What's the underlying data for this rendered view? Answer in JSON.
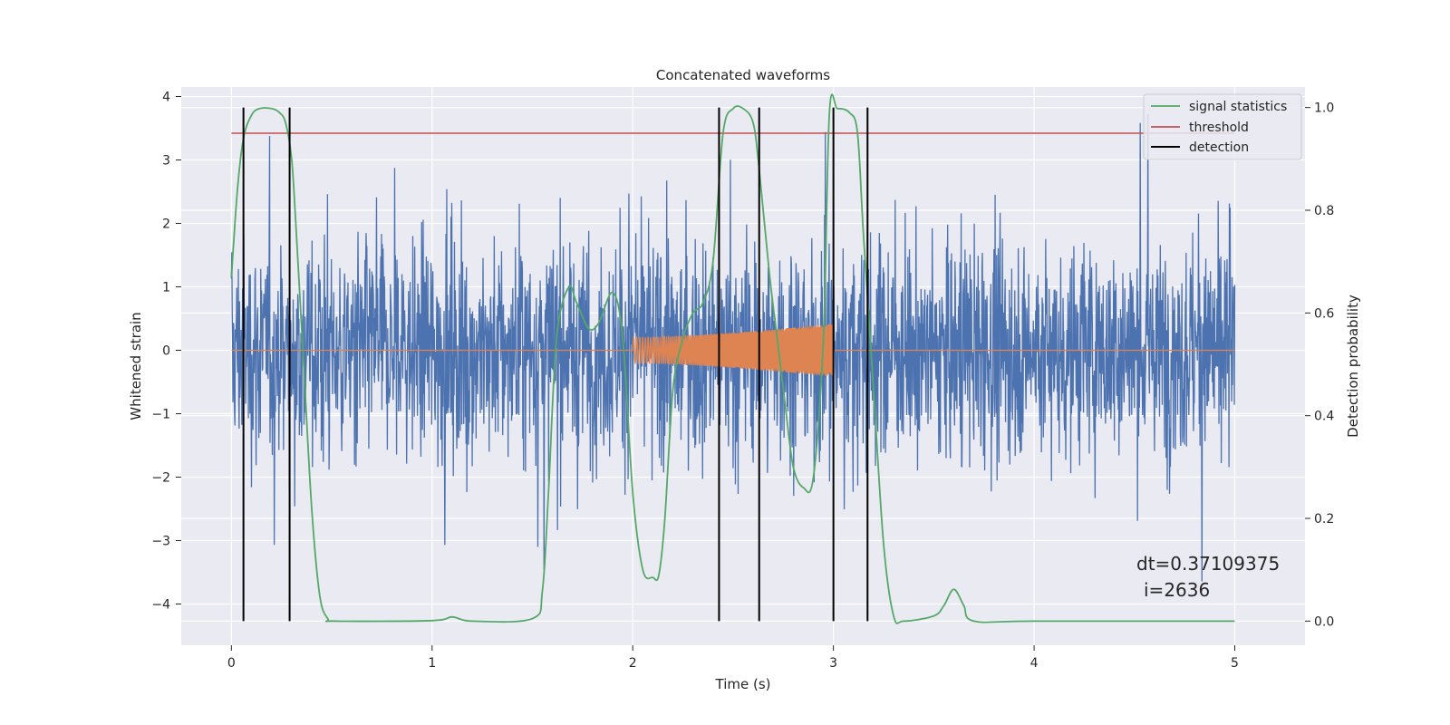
{
  "chart_data": {
    "type": "line",
    "title": "Concatenated waveforms",
    "xlabel": "Time (s)",
    "ylabel": "Whitened strain",
    "y2label": "Detection probability",
    "xlim": [
      -0.25,
      5.35
    ],
    "ylim": [
      -4.65,
      4.15
    ],
    "y2lim": [
      -0.047,
      1.04
    ],
    "xticks": [
      0,
      1,
      2,
      3,
      4,
      5
    ],
    "yticks": [
      -4,
      -3,
      -2,
      -1,
      0,
      1,
      2,
      3,
      4
    ],
    "y2ticks": [
      0.0,
      0.2,
      0.4,
      0.6,
      0.8,
      1.0
    ],
    "xtick_labels": [
      "0",
      "1",
      "2",
      "3",
      "4",
      "5"
    ],
    "ytick_labels": [
      "−4",
      "−3",
      "−2",
      "−1",
      "0",
      "1",
      "2",
      "3",
      "4"
    ],
    "y2tick_labels": [
      "0.0",
      "0.2",
      "0.4",
      "0.6",
      "0.8",
      "1.0"
    ],
    "grid": true,
    "legend_position": "top-right",
    "colors": {
      "noise": "#4c72b0",
      "injected": "#dd8452",
      "signal_statistics": "#55a868",
      "threshold": "#c44e52",
      "detection": "#000000",
      "background": "#eaeaf2",
      "grid": "#ffffff"
    },
    "series": [
      {
        "name": "signal statistics",
        "axis": "right",
        "x": [
          0.0,
          0.03,
          0.06,
          0.1,
          0.14,
          0.2,
          0.24,
          0.27,
          0.3,
          0.32,
          0.36,
          0.4,
          0.44,
          0.48,
          0.52,
          1.0,
          1.1,
          1.2,
          1.5,
          1.55,
          1.58,
          1.62,
          1.68,
          1.72,
          1.78,
          1.83,
          1.9,
          1.95,
          2.0,
          2.05,
          2.1,
          2.13,
          2.16,
          2.2,
          2.25,
          2.3,
          2.35,
          2.4,
          2.45,
          2.5,
          2.55,
          2.6,
          2.63,
          2.68,
          2.72,
          2.76,
          2.8,
          2.85,
          2.9,
          2.95,
          2.98,
          3.02,
          3.08,
          3.12,
          3.15,
          3.2,
          3.25,
          3.3,
          3.35,
          3.5,
          3.55,
          3.6,
          3.65,
          3.7,
          4.0,
          5.0
        ],
        "y": [
          0.67,
          0.84,
          0.94,
          0.985,
          0.998,
          0.998,
          0.99,
          0.97,
          0.9,
          0.78,
          0.5,
          0.22,
          0.05,
          0.005,
          0.0,
          0.001,
          0.008,
          0.0,
          0.005,
          0.06,
          0.25,
          0.55,
          0.65,
          0.62,
          0.57,
          0.58,
          0.64,
          0.55,
          0.25,
          0.1,
          0.085,
          0.09,
          0.2,
          0.45,
          0.55,
          0.6,
          0.62,
          0.7,
          0.95,
          0.998,
          0.998,
          0.97,
          0.88,
          0.68,
          0.55,
          0.42,
          0.3,
          0.26,
          0.28,
          0.55,
          0.99,
          0.998,
          0.99,
          0.95,
          0.75,
          0.45,
          0.15,
          0.01,
          0.0,
          0.01,
          0.03,
          0.062,
          0.03,
          0.0,
          0.0,
          0.0
        ]
      },
      {
        "name": "threshold",
        "axis": "right",
        "x": [
          0.0,
          5.0
        ],
        "y": [
          0.95,
          0.95
        ]
      },
      {
        "name": "detection",
        "axis": "right",
        "x_lines": [
          0.06,
          0.29,
          2.43,
          2.63,
          3.0,
          3.17
        ],
        "y_range": [
          0.0,
          1.0
        ]
      }
    ],
    "noise": {
      "axis": "left",
      "x_range": [
        0.0,
        5.0
      ],
      "typical_amplitude": 1.2,
      "max_peak": 3.78,
      "min_peak": -4.25
    },
    "injected_waveform": {
      "axis": "left",
      "x_range": [
        2.0,
        3.0
      ],
      "amplitude_start": 0.2,
      "amplitude_end": 0.42
    },
    "annotations": [
      "dt=0.37109375",
      "i=2636"
    ]
  }
}
